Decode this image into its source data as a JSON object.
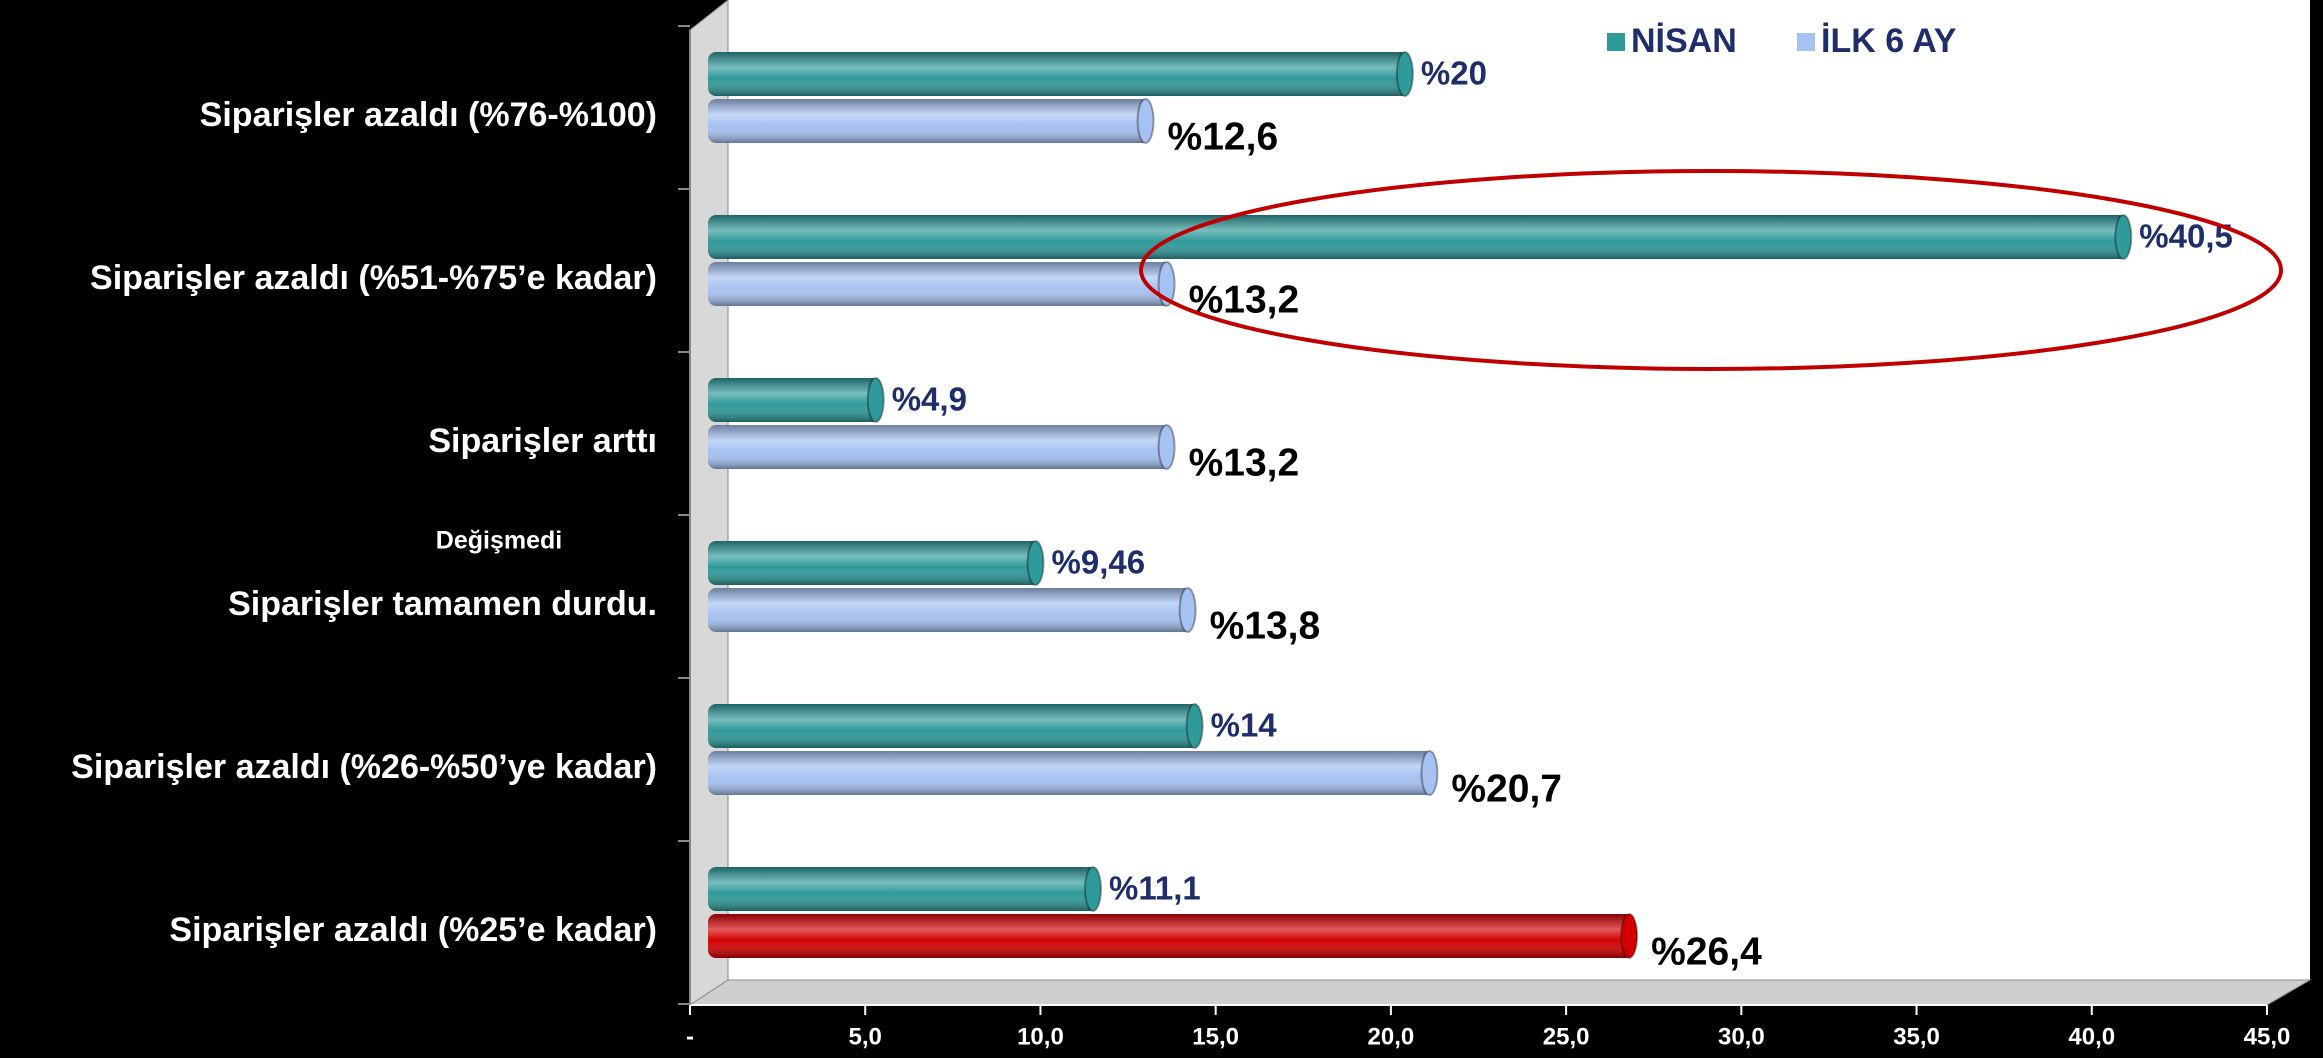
{
  "chart_data": {
    "type": "barh",
    "categories": [
      "Siparişler azaldı (%76-%100)",
      "Siparişler azaldı (%51-%75’e kadar)",
      "Siparişler arttı",
      "Siparişler tamamen durdu.",
      "Siparişler azaldı (%26-%50’ye kadar)",
      "Siparişler azaldı (%25’e kadar)"
    ],
    "series": [
      {
        "name": "NİSAN",
        "color": "#2f9a9a",
        "values": [
          20,
          40.5,
          4.9,
          9.46,
          14,
          11.1
        ],
        "value_labels": [
          "%20",
          "%40,5",
          "%4,9",
          "%9,46",
          "%14",
          "%11,1"
        ]
      },
      {
        "name": "İLK 6 AY",
        "color": "#a6c2f2",
        "colors": [
          "#a6c2f2",
          "#a6c2f2",
          "#a6c2f2",
          "#a6c2f2",
          "#a6c2f2",
          "#d40000"
        ],
        "values": [
          12.6,
          13.2,
          13.2,
          13.8,
          20.7,
          26.4
        ],
        "value_labels": [
          "%12,6",
          "%13,2",
          "%13,2",
          "%13,8",
          "%20,7",
          "%26,4"
        ]
      }
    ],
    "annotations": [
      "Değişmedi"
    ],
    "xlim": [
      0,
      45
    ],
    "xticks": [
      {
        "value": 0,
        "label": "-"
      },
      {
        "value": 5,
        "label": "5,0"
      },
      {
        "value": 10,
        "label": "10,0"
      },
      {
        "value": 15,
        "label": "15,0"
      },
      {
        "value": 20,
        "label": "20,0"
      },
      {
        "value": 25,
        "label": "25,0"
      },
      {
        "value": 30,
        "label": "30,0"
      },
      {
        "value": 35,
        "label": "35,0"
      },
      {
        "value": 40,
        "label": "40,0"
      },
      {
        "value": 45,
        "label": "45,0"
      }
    ],
    "legend": "top-right"
  }
}
